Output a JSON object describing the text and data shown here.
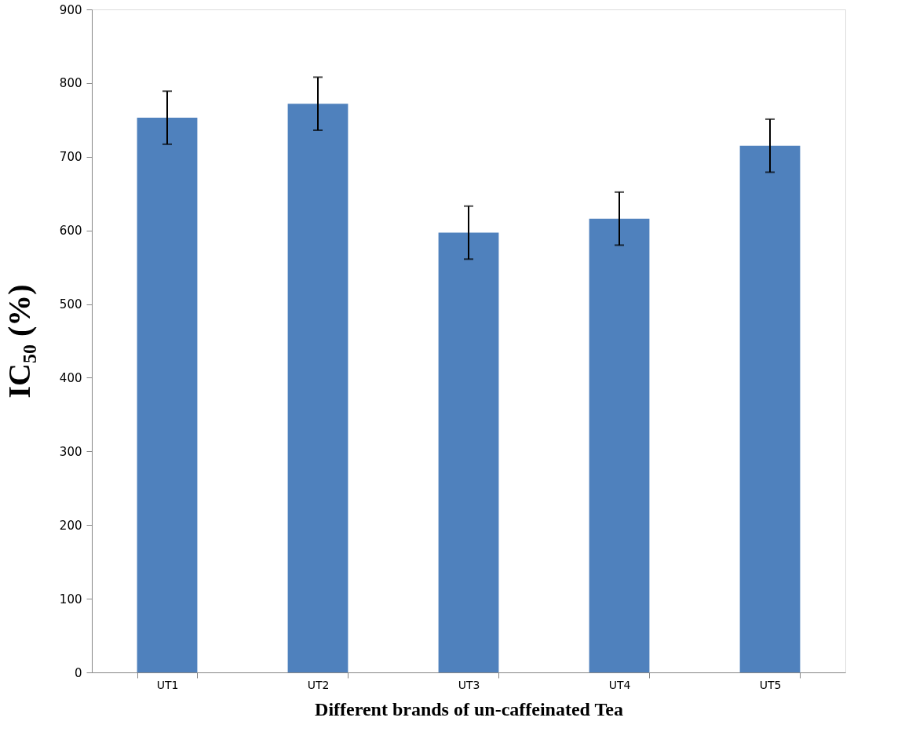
{
  "chart_data": {
    "type": "bar",
    "xlabel": "Different brands of un-caffeinated Tea",
    "ylabel": "IC₅₀ (%)",
    "categories": [
      "UT1",
      "UT2",
      "UT3",
      "UT4",
      "UT5"
    ],
    "series": [
      {
        "color": "#4f81bd",
        "values": [
          753,
          772,
          597,
          616,
          715
        ],
        "errors": [
          36,
          36,
          36,
          36,
          36
        ]
      }
    ],
    "ylim": [
      0,
      900
    ],
    "yticks": [
      0,
      100,
      200,
      300,
      400,
      500,
      600,
      700,
      800,
      900
    ],
    "grid": false
  }
}
